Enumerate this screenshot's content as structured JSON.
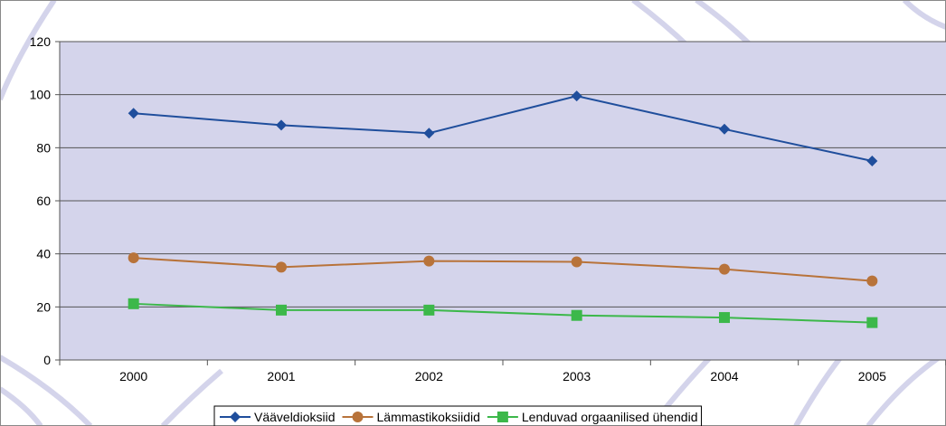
{
  "chart_data": {
    "type": "line",
    "title": "",
    "xlabel": "",
    "ylabel": "",
    "categories": [
      "2000",
      "2001",
      "2002",
      "2003",
      "2004",
      "2005"
    ],
    "ylim": [
      0,
      120
    ],
    "yticks": [
      "0",
      "20",
      "40",
      "60",
      "80",
      "100",
      "120"
    ],
    "grid": true,
    "legend_position": "bottom",
    "series": [
      {
        "name": "Vääveldioksiid",
        "values": [
          93,
          88.5,
          85.5,
          99.5,
          87,
          75
        ],
        "color": "#1f4e9c",
        "marker": "diamond"
      },
      {
        "name": "Lämmastikoksiidid",
        "values": [
          38.5,
          35,
          37.3,
          37,
          34.2,
          29.8
        ],
        "color": "#b8733a",
        "marker": "circle"
      },
      {
        "name": "Lenduvad orgaanilised ühendid",
        "values": [
          21.2,
          18.8,
          18.8,
          16.8,
          16,
          14.1
        ],
        "color": "#3cb84a",
        "marker": "square"
      }
    ],
    "colors": {
      "plot_background": "#d4d4eb",
      "gridline": "#555555"
    }
  }
}
